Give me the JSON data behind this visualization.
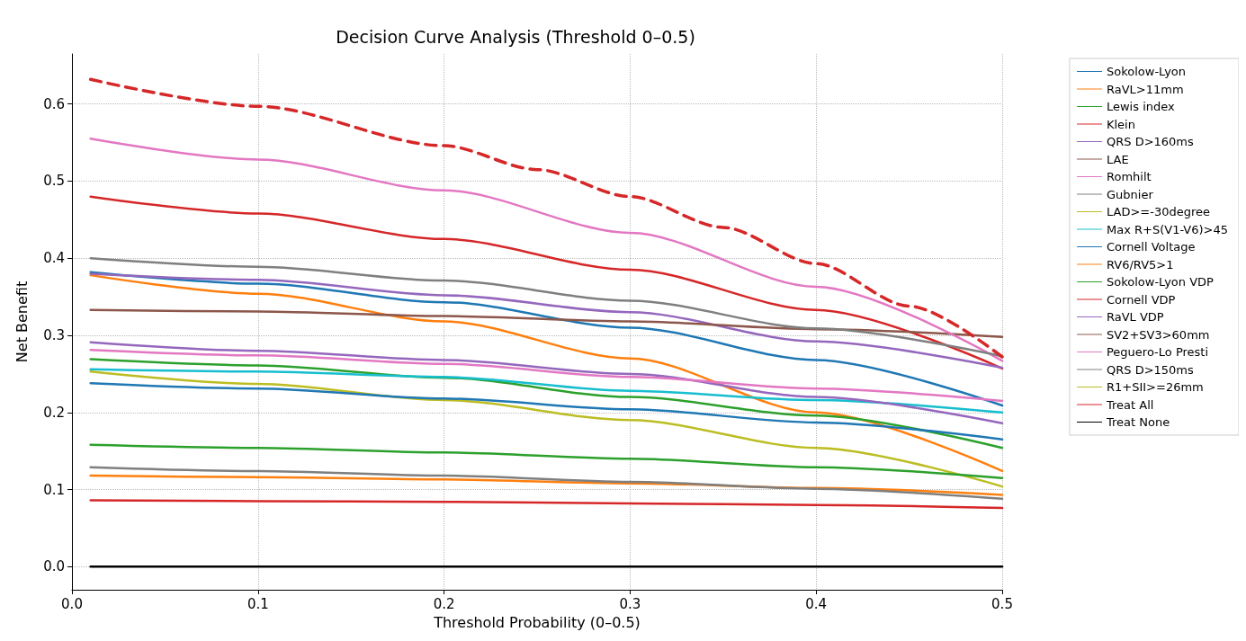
{
  "chart_data": {
    "type": "line",
    "title": "Decision Curve Analysis (Threshold 0–0.5)",
    "xlabel": "Threshold Probability (0–0.5)",
    "ylabel": "Net Benefit",
    "x": [
      0.01,
      0.1,
      0.2,
      0.3,
      0.4,
      0.5
    ],
    "series": [
      {
        "name": "Sokolow-Lyon",
        "color": "#1f77b4",
        "values": [
          0.382,
          0.367,
          0.343,
          0.31,
          0.268,
          0.209
        ]
      },
      {
        "name": "RaVL>11mm",
        "color": "#ff7f0e",
        "values": [
          0.378,
          0.354,
          0.318,
          0.27,
          0.2,
          0.124
        ]
      },
      {
        "name": "Lewis index",
        "color": "#2ca02c",
        "values": [
          0.269,
          0.261,
          0.245,
          0.22,
          0.196,
          0.154
        ]
      },
      {
        "name": "Klein",
        "color": "#d62728",
        "values": [
          0.48,
          0.458,
          0.425,
          0.385,
          0.333,
          0.257
        ]
      },
      {
        "name": "QRS D>160ms",
        "color": "#9467bd",
        "values": [
          0.38,
          0.372,
          0.352,
          0.33,
          0.292,
          0.258
        ]
      },
      {
        "name": "LAE",
        "color": "#8c564b",
        "values": [
          0.333,
          0.331,
          0.325,
          0.318,
          0.308,
          0.298
        ]
      },
      {
        "name": "Romhilt",
        "color": "#e377c2",
        "values": [
          0.555,
          0.528,
          0.488,
          0.433,
          0.363,
          0.267
        ]
      },
      {
        "name": "Gubnier",
        "color": "#7f7f7f",
        "values": [
          0.4,
          0.389,
          0.371,
          0.345,
          0.309,
          0.273
        ]
      },
      {
        "name": "LAD>=-30degree",
        "color": "#bcbd22",
        "values": [
          0.253,
          0.237,
          0.216,
          0.19,
          0.154,
          0.104
        ]
      },
      {
        "name": "Max R+S(V1-V6)>45",
        "color": "#17becf",
        "values": [
          0.256,
          0.253,
          0.246,
          0.228,
          0.216,
          0.2
        ]
      },
      {
        "name": "Cornell Voltage",
        "color": "#1f77b4",
        "values": [
          0.238,
          0.231,
          0.218,
          0.204,
          0.187,
          0.165
        ]
      },
      {
        "name": "RV6/RV5>1",
        "color": "#ff7f0e",
        "values": [
          0.118,
          0.116,
          0.113,
          0.108,
          0.102,
          0.093
        ]
      },
      {
        "name": "Sokolow-Lyon VDP",
        "color": "#2ca02c",
        "values": [
          0.158,
          0.154,
          0.148,
          0.14,
          0.129,
          0.115
        ]
      },
      {
        "name": "Cornell VDP",
        "color": "#d62728",
        "values": [
          0.086,
          0.085,
          0.084,
          0.082,
          0.08,
          0.076
        ]
      },
      {
        "name": "RaVL VDP",
        "color": "#9467bd",
        "values": [
          0.291,
          0.28,
          0.268,
          0.25,
          0.22,
          0.186
        ]
      },
      {
        "name": "SV2+SV3>60mm",
        "color": "#8c564b",
        "values": [
          null,
          null,
          null,
          null,
          null,
          null
        ]
      },
      {
        "name": "Peguero-Lo Presti",
        "color": "#e377c2",
        "values": [
          0.281,
          0.274,
          0.263,
          0.246,
          0.231,
          0.215
        ]
      },
      {
        "name": "QRS D>150ms",
        "color": "#7f7f7f",
        "values": [
          0.129,
          0.124,
          0.118,
          0.11,
          0.101,
          0.088
        ]
      },
      {
        "name": "R1+SII>=26mm",
        "color": "#bcbd22",
        "values": [
          null,
          null,
          null,
          null,
          null,
          null
        ]
      },
      {
        "name": "Treat All",
        "color": "#d62728",
        "line_style": "dashed",
        "x": [
          0.01,
          0.1,
          0.2,
          0.25,
          0.3,
          0.35,
          0.4,
          0.45,
          0.5
        ],
        "values": [
          0.632,
          0.597,
          0.546,
          0.515,
          0.48,
          0.44,
          0.393,
          0.338,
          0.272
        ]
      },
      {
        "name": "Treat None",
        "color": "#000000",
        "values": [
          0,
          0,
          0,
          0,
          0,
          0
        ]
      }
    ],
    "xlim": [
      0,
      0.5
    ],
    "xticks": [
      {
        "value": 0,
        "label": "0.0"
      },
      0.1,
      0.2,
      0.3,
      0.4,
      0.5
    ],
    "ylim": [
      -0.03,
      0.665
    ],
    "yticks": [
      {
        "value": 0,
        "label": "0.0"
      },
      0.1,
      0.2,
      0.3,
      0.4,
      0.5,
      0.6
    ],
    "grid": true,
    "legend": "right",
    "marker": "none",
    "line_style": "solid"
  }
}
